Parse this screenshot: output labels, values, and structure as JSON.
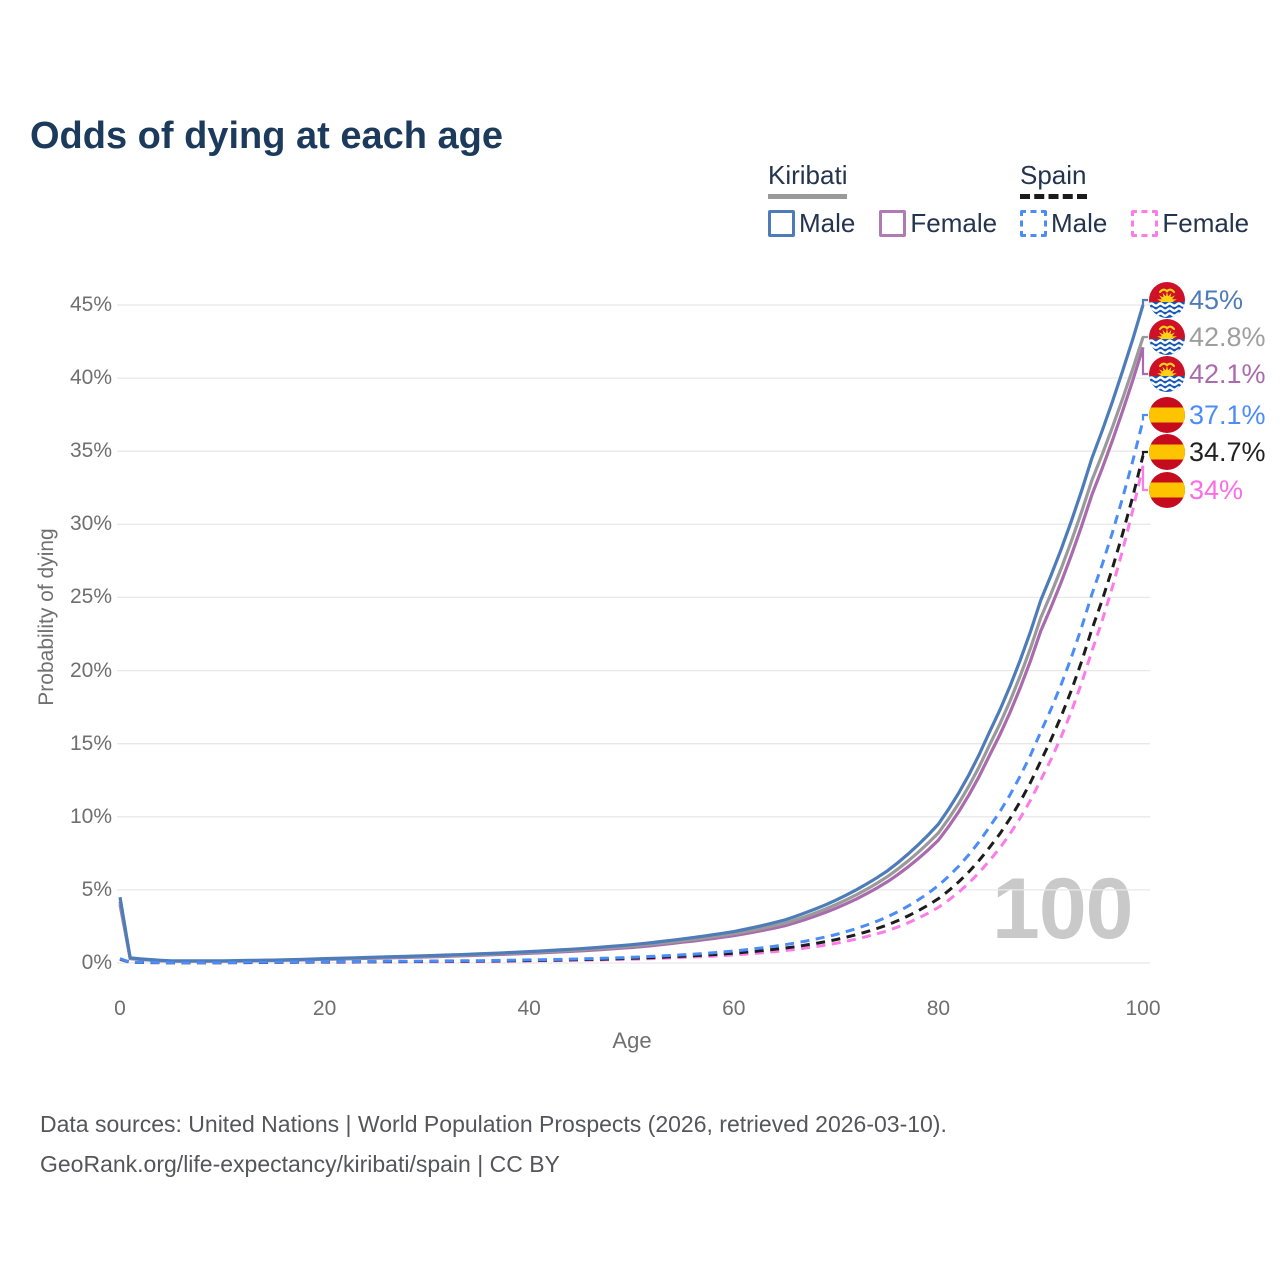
{
  "title": "Odds of dying at each age",
  "watermark": "100",
  "legend": {
    "groups": [
      {
        "country": "Kiribati",
        "line_style": "solid",
        "underline_color": "#9a9a9a",
        "items": [
          {
            "label": "Male",
            "color": "#4d7cb8"
          },
          {
            "label": "Female",
            "color": "#b07ab4"
          }
        ]
      },
      {
        "country": "Spain",
        "line_style": "dashed",
        "underline_color": "#1b1b1b",
        "items": [
          {
            "label": "Male",
            "color": "#4b8cf7"
          },
          {
            "label": "Female",
            "color": "#fc7be7"
          }
        ]
      }
    ]
  },
  "footer": {
    "line1": "Data sources: United Nations | World Population Prospects (2026, retrieved 2026-03-10).",
    "line2": "GeoRank.org/life-expectancy/kiribati/spain | CC BY"
  },
  "chart_data": {
    "type": "line",
    "title": "Odds of dying at each age",
    "xlabel": "Age",
    "ylabel": "Probability of dying",
    "xlim": [
      0,
      100
    ],
    "ylim": [
      0,
      45
    ],
    "x_ticks": [
      0,
      20,
      40,
      60,
      80,
      100
    ],
    "y_ticks": [
      0,
      5,
      10,
      15,
      20,
      25,
      30,
      35,
      40,
      45
    ],
    "y_tick_labels": [
      "0%",
      "5%",
      "10%",
      "15%",
      "20%",
      "25%",
      "30%",
      "35%",
      "40%",
      "45%"
    ],
    "grid": "horizontal",
    "legend_position": "top-right",
    "age_cursor_watermark": "100",
    "ages": [
      0,
      1,
      5,
      10,
      15,
      20,
      25,
      30,
      35,
      40,
      45,
      50,
      55,
      60,
      65,
      70,
      75,
      80,
      85,
      90,
      95,
      100
    ],
    "series": [
      {
        "name": "Kiribati Male",
        "country": "Kiribati",
        "sex": "Male",
        "style": "solid",
        "color": "#4d7cb8",
        "flag": "kiribati",
        "end_label": "45%",
        "end_label_color": "#4d7cb8",
        "values": [
          4.5,
          0.35,
          0.15,
          0.15,
          0.2,
          0.3,
          0.4,
          0.5,
          0.62,
          0.78,
          0.98,
          1.25,
          1.65,
          2.15,
          2.95,
          4.3,
          6.3,
          9.5,
          15.8,
          24.8,
          34.5,
          45
        ]
      },
      {
        "name": "Kiribati Both sexes",
        "country": "Kiribati",
        "sex": "Both sexes",
        "style": "solid",
        "color": "#9a9a9a",
        "flag": "kiribati",
        "end_label": "42.8%",
        "end_label_color": "#9e9e9e",
        "values": [
          4.2,
          0.32,
          0.13,
          0.13,
          0.18,
          0.27,
          0.36,
          0.46,
          0.57,
          0.72,
          0.9,
          1.15,
          1.52,
          2.0,
          2.72,
          4.0,
          5.9,
          8.9,
          14.9,
          23.6,
          33.0,
          42.8
        ]
      },
      {
        "name": "Kiribati Female",
        "country": "Kiribati",
        "sex": "Female",
        "style": "solid",
        "color": "#a96bad",
        "flag": "kiribati",
        "end_label": "42.1%",
        "end_label_color": "#a96bad",
        "values": [
          4.0,
          0.3,
          0.12,
          0.12,
          0.17,
          0.25,
          0.33,
          0.42,
          0.53,
          0.66,
          0.83,
          1.06,
          1.42,
          1.87,
          2.55,
          3.75,
          5.55,
          8.4,
          14.2,
          22.7,
          32.0,
          42.1
        ]
      },
      {
        "name": "Spain Male",
        "country": "Spain",
        "sex": "Male",
        "style": "dashed",
        "color": "#4b8cf7",
        "flag": "spain",
        "end_label": "37.1%",
        "end_label_color": "#4b8cf7",
        "values": [
          0.3,
          0.05,
          0.03,
          0.03,
          0.06,
          0.09,
          0.11,
          0.13,
          0.16,
          0.21,
          0.28,
          0.39,
          0.56,
          0.82,
          1.25,
          1.95,
          3.15,
          5.3,
          9.3,
          15.8,
          25.2,
          37.1
        ]
      },
      {
        "name": "Spain Both sexes",
        "country": "Spain",
        "sex": "Both sexes",
        "style": "dashed",
        "color": "#1c1c1c",
        "flag": "spain",
        "end_label": "34.7%",
        "end_label_color": "#222222",
        "values": [
          0.27,
          0.04,
          0.02,
          0.02,
          0.05,
          0.07,
          0.09,
          0.11,
          0.13,
          0.17,
          0.23,
          0.32,
          0.46,
          0.67,
          1.02,
          1.6,
          2.6,
          4.4,
          7.9,
          13.8,
          22.8,
          34.7
        ]
      },
      {
        "name": "Spain Female",
        "country": "Spain",
        "sex": "Female",
        "style": "dashed",
        "color": "#fc7be7",
        "flag": "spain",
        "end_label": "34%",
        "end_label_color": "#fb6de4",
        "values": [
          0.25,
          0.04,
          0.02,
          0.02,
          0.04,
          0.05,
          0.07,
          0.08,
          0.1,
          0.14,
          0.19,
          0.26,
          0.38,
          0.55,
          0.85,
          1.35,
          2.2,
          3.8,
          7.0,
          12.5,
          21.3,
          34.0
        ]
      }
    ]
  }
}
